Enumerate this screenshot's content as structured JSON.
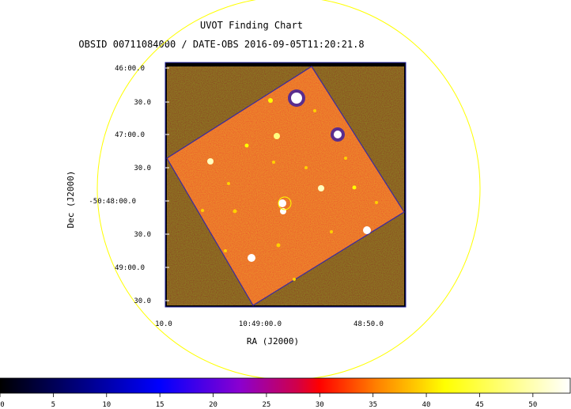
{
  "title": "UVOT Finding Chart",
  "subtitle": "OBSID 00711084000 / DATE-OBS 2016-09-05T11:20:21.8",
  "x_axis": {
    "label": "RA (J2000)",
    "ticks": [
      "10.0",
      "10:49:00.0",
      "48:50.0"
    ]
  },
  "y_axis": {
    "label": "Dec (J2000)",
    "ticks": [
      "46:00.0",
      "30.0",
      "47:00.0",
      "30.0",
      "-50:48:00.0",
      "30.0",
      "49:00.0",
      "30.0"
    ]
  },
  "colorbar": {
    "ticks": [
      "0",
      "5",
      "10",
      "15",
      "20",
      "25",
      "30",
      "35",
      "40",
      "45",
      "50"
    ],
    "colormap": [
      "#000000",
      "#0000ff",
      "#a000c8",
      "#ff0000",
      "#ffa000",
      "#ffff00",
      "#ffffff"
    ]
  },
  "colors": {
    "background": "#ffffff",
    "image_bg": "#000000",
    "image_noise": "#e8331a",
    "frame": "#2020a0",
    "outer_circle": "#ffff00",
    "target_circle": "#ffff00",
    "star": "#ffffff"
  }
}
